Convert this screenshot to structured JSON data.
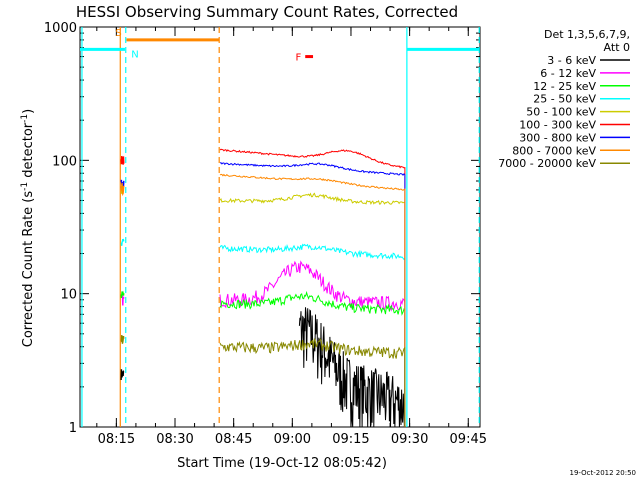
{
  "chart_data": {
    "type": "line",
    "title": "HESSI Observing Summary Count Rates, Corrected",
    "xlabel": "Start Time (19-Oct-12 08:05:42)",
    "ylabel": "Corrected Count Rate (s⁻¹ detector⁻¹)",
    "ylabel_parts": {
      "main": "Corrected Count Rate (s",
      "sup1": "-1",
      "mid": " detector",
      "sup2": "-1",
      "end": ")"
    },
    "y_scale": "log",
    "ylim": [
      1,
      1000
    ],
    "xlim_minutes": [
      485.7,
      588.0
    ],
    "x_ticks": [
      {
        "label": "08:15",
        "min": 495
      },
      {
        "label": "08:30",
        "min": 510
      },
      {
        "label": "08:45",
        "min": 525
      },
      {
        "label": "09:00",
        "min": 540
      },
      {
        "label": "09:15",
        "min": 555
      },
      {
        "label": "09:30",
        "min": 570
      },
      {
        "label": "09:45",
        "min": 585
      }
    ],
    "y_ticks": [
      {
        "label": "1",
        "value": 1
      },
      {
        "label": "10",
        "value": 10
      },
      {
        "label": "100",
        "value": 100
      },
      {
        "label": "1000",
        "value": 1000
      }
    ],
    "legend": {
      "header1": "Det 1,3,5,6,7,9,",
      "header2": "Att 0",
      "placement": "right"
    },
    "series": [
      {
        "name": "3 - 6 keV",
        "color": "#000000",
        "start": 541.8,
        "peak": 542.5,
        "base_start": 2.5,
        "base_end": 1.5,
        "peak_amp": 3.0,
        "noise": 0.55
      },
      {
        "name": "6 - 12 keV",
        "color": "#ff00ff",
        "start": 521.5,
        "peak": 542.0,
        "base_start": 9.0,
        "base_end": 8.5,
        "peak_amp": 7.0,
        "noise": 0.12
      },
      {
        "name": "12 - 25 keV",
        "color": "#00ff00",
        "start": 521.5,
        "peak": 543.0,
        "base_start": 8.5,
        "base_end": 7.5,
        "peak_amp": 1.5,
        "noise": 0.08
      },
      {
        "name": "25 - 50 keV",
        "color": "#00ffff",
        "start": 521.5,
        "peak": 545.0,
        "base_start": 22.0,
        "base_end": 19.0,
        "peak_amp": 2.0,
        "noise": 0.05
      },
      {
        "name": "50 - 100 keV",
        "color": "#cccc00",
        "start": 521.5,
        "peak": 545.0,
        "base_start": 50.0,
        "base_end": 48.0,
        "peak_amp": 6.0,
        "noise": 0.03
      },
      {
        "name": "100 - 300 keV",
        "color": "#ff0000",
        "start": 521.5,
        "peak": 554.0,
        "base_start": 120.0,
        "base_end": 88.0,
        "peak_amp": 20.0,
        "noise": 0.015
      },
      {
        "name": "300 - 800 keV",
        "color": "#0000ff",
        "start": 521.5,
        "peak": 547.0,
        "base_start": 95.0,
        "base_end": 78.0,
        "peak_amp": 8.0,
        "noise": 0.015
      },
      {
        "name": "800 - 7000 keV",
        "color": "#ff8800",
        "start": 521.5,
        "peak": 547.0,
        "base_start": 78.0,
        "base_end": 60.0,
        "peak_amp": 4.0,
        "noise": 0.015
      },
      {
        "name": "7000 - 20000 keV",
        "color": "#888800",
        "start": 521.5,
        "peak": 545.0,
        "base_start": 4.0,
        "base_end": 3.6,
        "peak_amp": 0.4,
        "noise": 0.1
      }
    ],
    "first_segment": {
      "start": 496.2,
      "end": 496.9,
      "values": {
        "100 - 300 keV": 100,
        "300 - 800 keV": 65,
        "800 - 7000 keV": 62,
        "50 - 100 keV": 62,
        "25 - 50 keV": 25,
        "6 - 12 keV": 9,
        "12 - 25 keV": 9.5,
        "7000 - 20000 keV": 4.5,
        "3 - 6 keV": 2.5
      }
    },
    "flags": [
      {
        "label": "S",
        "color": "#ff8800",
        "start": 497.6,
        "end": 521.3,
        "value": 800,
        "dashed_end": true
      },
      {
        "label": "N",
        "color": "#00ffff",
        "start": 485.7,
        "end": 497.2,
        "value": 680,
        "dashed_end": false
      },
      {
        "label": "",
        "color": "#00ffff",
        "start": 569.3,
        "end": 587.8,
        "value": 680,
        "dashed_end": true
      },
      {
        "label": "F",
        "color": "#ff0000",
        "start": 543.3,
        "end": 545.3,
        "value": 600,
        "dashed_end": false
      }
    ],
    "vertical_markers": [
      {
        "min": 486.2,
        "color": "#00ffff",
        "style": "solid"
      },
      {
        "min": 496.0,
        "color": "#ff8800",
        "style": "solid"
      },
      {
        "min": 497.4,
        "color": "#00ffff",
        "style": "dashed"
      },
      {
        "min": 521.3,
        "color": "#ff8800",
        "style": "dashed"
      },
      {
        "min": 569.3,
        "color": "#00ffff",
        "style": "solid"
      },
      {
        "min": 587.8,
        "color": "#00ffff",
        "style": "dashed"
      }
    ],
    "footer_date": "19-Oct-2012 20:50",
    "grid": false
  }
}
